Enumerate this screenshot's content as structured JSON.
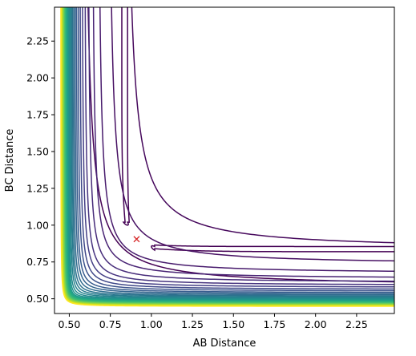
{
  "chart_data": {
    "type": "contour",
    "title": "",
    "xlabel": "AB Distance",
    "ylabel": "BC Distance",
    "xlim": [
      0.41,
      2.48
    ],
    "ylim": [
      0.4,
      2.48
    ],
    "xticks": [
      0.5,
      0.75,
      1.0,
      1.25,
      1.5,
      1.75,
      2.0,
      2.25
    ],
    "xtick_labels": [
      "0.50",
      "0.75",
      "1.00",
      "1.25",
      "1.50",
      "1.75",
      "2.00",
      "2.25"
    ],
    "yticks": [
      0.5,
      0.75,
      1.0,
      1.25,
      1.5,
      1.75,
      2.0,
      2.25
    ],
    "ytick_labels": [
      "0.50",
      "0.75",
      "1.00",
      "1.25",
      "1.50",
      "1.75",
      "2.00",
      "2.25"
    ],
    "colormap": "viridis",
    "grid": false,
    "legend": "none",
    "contour_levels": [
      {
        "asymptote": 0.96,
        "color": "#440154",
        "split": true,
        "saddle_gap": [
          0.84,
          1.02
        ]
      },
      {
        "asymptote": 0.83,
        "color": "#46085c"
      },
      {
        "asymptote": 0.73,
        "color": "#471063"
      },
      {
        "asymptote": 0.67,
        "color": "#481b6d"
      },
      {
        "asymptote": 0.635,
        "color": "#482374"
      },
      {
        "asymptote": 0.61,
        "color": "#472c7a"
      },
      {
        "asymptote": 0.59,
        "color": "#46337f"
      },
      {
        "asymptote": 0.575,
        "color": "#433e85"
      },
      {
        "asymptote": 0.562,
        "color": "#3f4889"
      },
      {
        "asymptote": 0.551,
        "color": "#3b528b"
      },
      {
        "asymptote": 0.541,
        "color": "#375b8d"
      },
      {
        "asymptote": 0.533,
        "color": "#33638d"
      },
      {
        "asymptote": 0.525,
        "color": "#2f6c8e"
      },
      {
        "asymptote": 0.518,
        "color": "#2c738e"
      },
      {
        "asymptote": 0.512,
        "color": "#297b8e"
      },
      {
        "asymptote": 0.506,
        "color": "#26828e"
      },
      {
        "asymptote": 0.5,
        "color": "#238a8d"
      },
      {
        "asymptote": 0.495,
        "color": "#21918c"
      },
      {
        "asymptote": 0.49,
        "color": "#1f998a"
      },
      {
        "asymptote": 0.485,
        "color": "#20a386"
      },
      {
        "asymptote": 0.481,
        "color": "#25ab82"
      },
      {
        "asymptote": 0.477,
        "color": "#2eb37c"
      },
      {
        "asymptote": 0.473,
        "color": "#3bbb75"
      },
      {
        "asymptote": 0.469,
        "color": "#4ac16d"
      },
      {
        "asymptote": 0.466,
        "color": "#5ec962"
      },
      {
        "asymptote": 0.463,
        "color": "#75d054"
      },
      {
        "asymptote": 0.46,
        "color": "#8bd646"
      },
      {
        "asymptote": 0.457,
        "color": "#a2da37"
      },
      {
        "asymptote": 0.455,
        "color": "#bade28"
      },
      {
        "asymptote": 0.452,
        "color": "#d2e21b"
      },
      {
        "asymptote": 0.45,
        "color": "#e5e419"
      },
      {
        "asymptote": 0.448,
        "color": "#fde725"
      }
    ],
    "curve_offset": 0.3,
    "curve_offset_inner": 0.18,
    "markers": [
      {
        "x": 0.91,
        "y": 0.905,
        "symbol": "x",
        "color": "#d62728"
      }
    ]
  }
}
